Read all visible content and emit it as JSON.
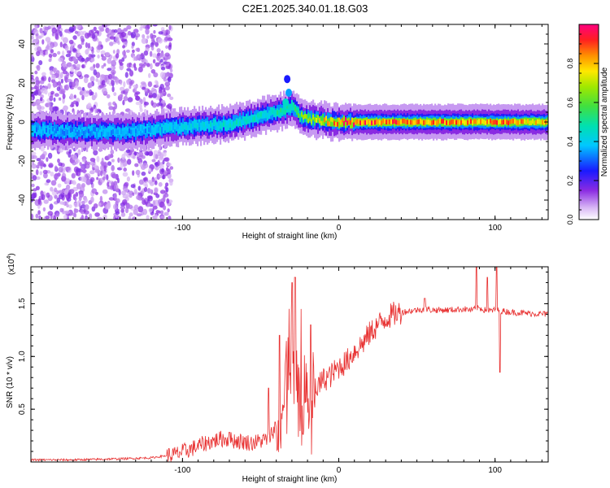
{
  "page_title": "C2E1.2025.340.01.18.G03",
  "chart_data": [
    {
      "type": "heatmap",
      "title": "C2E1.2025.340.01.18.G03",
      "xlabel": "Height of straight line (km)",
      "ylabel": "Frequency (Hz)",
      "xlim": [
        -197,
        134
      ],
      "ylim": [
        -50,
        50
      ],
      "xticks": [
        -100,
        0,
        100
      ],
      "xtick_labels": [
        "-100",
        "0",
        "100"
      ],
      "yticks": [
        -40,
        -20,
        0,
        20,
        40
      ],
      "ytick_labels": [
        "-40",
        "-20",
        "0",
        "20",
        "40"
      ],
      "colorbar": {
        "label": "Normalized spectral amplitude",
        "range": [
          0,
          1
        ],
        "ticks": [
          0,
          0.2,
          0.4,
          0.6,
          0.8
        ],
        "tick_labels": [
          "0.0",
          "0.2",
          "0.4",
          "0.6",
          "0.8"
        ]
      },
      "ridge": {
        "description_points_x_km": [
          -197,
          -160,
          -130,
          -110,
          -90,
          -70,
          -55,
          -45,
          -35,
          -30,
          -25,
          -15,
          0,
          20,
          60,
          100,
          134
        ],
        "center_frequency_hz": [
          -4,
          -5,
          -5,
          -3,
          -2,
          -1,
          2,
          4,
          6,
          8,
          3,
          1,
          0,
          0,
          0,
          0,
          0
        ],
        "peak_amplitude": [
          0.35,
          0.35,
          0.35,
          0.4,
          0.4,
          0.45,
          0.45,
          0.45,
          0.5,
          0.5,
          0.6,
          0.7,
          0.9,
          0.9,
          0.85,
          0.85,
          0.8
        ]
      }
    },
    {
      "type": "line",
      "title": "",
      "xlabel": "Height of straight line (km)",
      "ylabel": "SNR (10 * v/v)",
      "y_multiplier_label": "(x10",
      "y_multiplier_exp": "4",
      "y_multiplier_close": ")",
      "xlim": [
        -197,
        134
      ],
      "ylim": [
        0,
        1.85
      ],
      "xticks": [
        -100,
        0,
        100
      ],
      "xtick_labels": [
        "-100",
        "0",
        "100"
      ],
      "yticks": [
        0.5,
        1.0,
        1.5
      ],
      "ytick_labels": [
        "0.5",
        "1.0",
        "1.5"
      ],
      "series": [
        {
          "name": "SNR",
          "color": "#e83030",
          "x": [
            -197,
            -170,
            -140,
            -120,
            -105,
            -95,
            -85,
            -75,
            -65,
            -55,
            -45,
            -40,
            -35,
            -32,
            -28,
            -25,
            -20,
            -15,
            -10,
            -5,
            0,
            5,
            10,
            15,
            20,
            25,
            30,
            35,
            40,
            45,
            50,
            55,
            60,
            70,
            80,
            85,
            90,
            95,
            100,
            105,
            110,
            120,
            134
          ],
          "y": [
            0.02,
            0.02,
            0.03,
            0.04,
            0.07,
            0.12,
            0.18,
            0.22,
            0.2,
            0.18,
            0.22,
            0.35,
            0.55,
            1.2,
            0.65,
            0.55,
            0.62,
            0.68,
            0.78,
            0.82,
            0.9,
            0.95,
            1.05,
            1.12,
            1.22,
            1.3,
            1.36,
            1.4,
            1.42,
            1.43,
            1.44,
            1.45,
            1.44,
            1.44,
            1.45,
            1.44,
            1.46,
            1.43,
            1.44,
            1.43,
            1.42,
            1.41,
            1.4
          ]
        }
      ],
      "spikes_x": [
        -70,
        -45,
        -38,
        -30,
        -28,
        -24,
        -18,
        55,
        88,
        95,
        101,
        103
      ],
      "spikes_y": [
        0.28,
        0.7,
        1.2,
        1.7,
        1.75,
        1.45,
        1.3,
        1.55,
        1.85,
        1.75,
        1.85,
        0.85
      ]
    }
  ]
}
